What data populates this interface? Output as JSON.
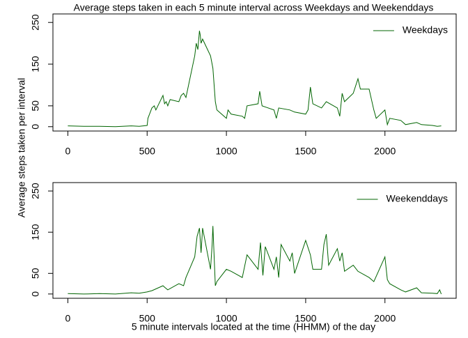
{
  "chart_data": [
    {
      "type": "line",
      "title": "Average steps taken in each 5 minute interval across Weekdays and Weekenddays",
      "ylabel": "Average steps taken per interval",
      "xlim": [
        -94.2,
        2449.2
      ],
      "xticks": [
        0,
        500,
        1000,
        1500,
        2000
      ],
      "ylim": [
        -10.4,
        270.4
      ],
      "yticks": [
        0,
        50,
        150,
        250
      ],
      "legend": "topright",
      "x": [
        0,
        100,
        200,
        300,
        400,
        450,
        500,
        505,
        515,
        530,
        545,
        555,
        600,
        610,
        620,
        630,
        645,
        700,
        715,
        730,
        745,
        800,
        810,
        820,
        830,
        835,
        840,
        850,
        900,
        915,
        930,
        940,
        1000,
        1010,
        1030,
        1100,
        1115,
        1130,
        1200,
        1210,
        1225,
        1300,
        1315,
        1330,
        1400,
        1430,
        1500,
        1515,
        1530,
        1545,
        1600,
        1630,
        1700,
        1715,
        1730,
        1745,
        1800,
        1830,
        1845,
        1900,
        1930,
        1945,
        2000,
        2015,
        2030,
        2100,
        2130,
        2200,
        2230,
        2300,
        2330,
        2355
      ],
      "series": [
        {
          "name": "Weekdays",
          "color": "#006400",
          "values": [
            2,
            1,
            1,
            0,
            2,
            1,
            3,
            20,
            30,
            45,
            50,
            40,
            75,
            55,
            60,
            50,
            65,
            60,
            75,
            80,
            70,
            170,
            200,
            185,
            230,
            220,
            200,
            210,
            170,
            140,
            60,
            40,
            20,
            40,
            30,
            25,
            20,
            50,
            55,
            85,
            50,
            40,
            20,
            45,
            40,
            35,
            30,
            40,
            95,
            55,
            45,
            60,
            45,
            25,
            80,
            60,
            80,
            115,
            90,
            90,
            40,
            20,
            40,
            5,
            20,
            15,
            5,
            10,
            5,
            3,
            1,
            2
          ]
        }
      ]
    },
    {
      "type": "line",
      "xlabel": "5 minute intervals located at the time (HHMM) of the day",
      "xlim": [
        -94.2,
        2449.2
      ],
      "xticks": [
        0,
        500,
        1000,
        1500,
        2000
      ],
      "ylim": [
        -10.4,
        270.4
      ],
      "yticks": [
        0,
        50,
        150,
        250
      ],
      "legend": "topright",
      "x": [
        0,
        100,
        200,
        300,
        400,
        450,
        500,
        530,
        600,
        615,
        630,
        700,
        730,
        745,
        800,
        815,
        830,
        840,
        845,
        850,
        900,
        910,
        915,
        930,
        940,
        1000,
        1030,
        1100,
        1130,
        1200,
        1215,
        1230,
        1245,
        1300,
        1315,
        1330,
        1345,
        1400,
        1415,
        1430,
        1500,
        1530,
        1545,
        1600,
        1615,
        1630,
        1645,
        1700,
        1715,
        1730,
        1745,
        1800,
        1830,
        1900,
        1930,
        2000,
        2015,
        2030,
        2100,
        2130,
        2200,
        2230,
        2300,
        2330,
        2345,
        2355
      ],
      "series": [
        {
          "name": "Weekenddays",
          "color": "#006400",
          "values": [
            1,
            0,
            1,
            0,
            3,
            2,
            5,
            8,
            20,
            15,
            10,
            25,
            20,
            40,
            90,
            140,
            160,
            100,
            130,
            160,
            60,
            120,
            165,
            20,
            30,
            60,
            55,
            40,
            95,
            60,
            125,
            45,
            115,
            60,
            90,
            40,
            120,
            80,
            100,
            50,
            130,
            95,
            60,
            60,
            120,
            145,
            70,
            110,
            80,
            100,
            55,
            70,
            55,
            40,
            30,
            90,
            35,
            25,
            10,
            5,
            15,
            3,
            2,
            1,
            10,
            0
          ]
        }
      ]
    }
  ]
}
